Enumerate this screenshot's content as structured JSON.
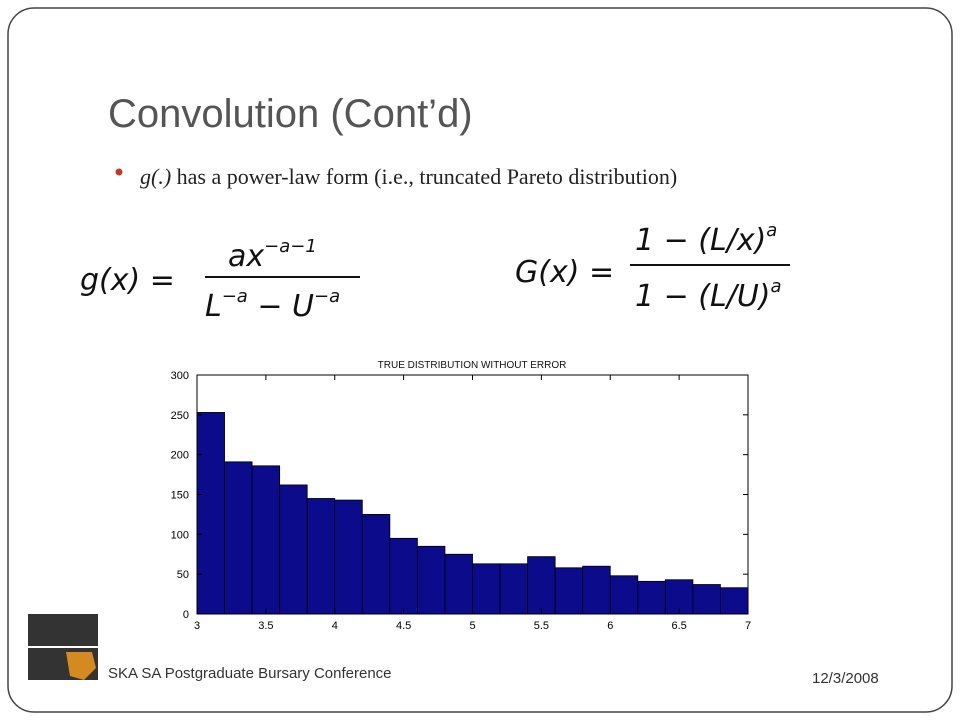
{
  "slide": {
    "title": "Convolution (Cont’d)",
    "bullet": {
      "italic": "g(.)",
      "text": " has a power-law form (i.e., truncated Pareto distribution)"
    },
    "formulas": {
      "g": {
        "lhs": "g(x) =",
        "num_base": "ax",
        "num_exp": "−a−1",
        "den_1": "L",
        "den_1_exp": "−a",
        "den_op": " − U",
        "den_2_exp": "−a"
      },
      "G": {
        "lhs": "G(x) =",
        "num": "1 − (L/x)",
        "num_exp": "a",
        "den": "1 − (L/U)",
        "den_exp": "a"
      }
    },
    "footer": "SKA SA Postgraduate Bursary Conference",
    "date": "12/3/2008"
  },
  "chart_data": {
    "type": "histogram",
    "title": "TRUE DISTRIBUTION WITHOUT ERROR",
    "bins": [
      3,
      3.2,
      3.4,
      3.6,
      3.8,
      4,
      4.2,
      4.4,
      4.6,
      4.8,
      5,
      5.2,
      5.4,
      5.6,
      5.8,
      6,
      6.2,
      6.4,
      6.6,
      6.8,
      7
    ],
    "values": [
      253,
      191,
      186,
      162,
      145,
      143,
      125,
      95,
      85,
      75,
      63,
      63,
      72,
      58,
      60,
      48,
      41,
      43,
      37,
      33
    ],
    "color": "#0b0b8c",
    "xlim": [
      3,
      7
    ],
    "xticks": [
      3,
      3.5,
      4,
      4.5,
      5,
      5.5,
      6,
      6.5,
      7
    ],
    "ylim": [
      0,
      300
    ],
    "yticks": [
      0,
      50,
      100,
      150,
      200,
      250,
      300
    ]
  }
}
